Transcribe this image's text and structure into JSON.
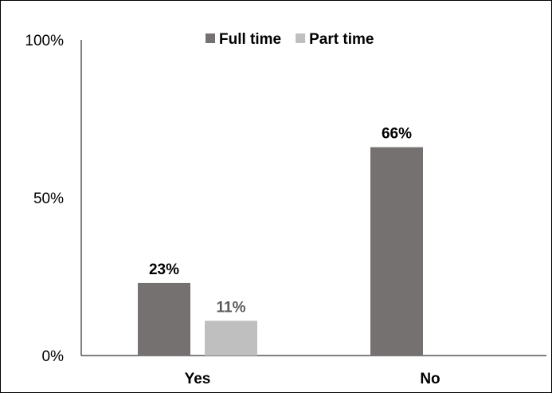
{
  "chart_data": {
    "type": "bar",
    "categories": [
      "Yes",
      "No"
    ],
    "series": [
      {
        "name": "Full time",
        "values": [
          23,
          66
        ],
        "labels": [
          "23%",
          "66%"
        ],
        "color": "#767171"
      },
      {
        "name": "Part time",
        "values": [
          11,
          null
        ],
        "labels": [
          "11%",
          ""
        ],
        "color": "#BFBFBF"
      }
    ],
    "ylim": [
      0,
      100
    ],
    "yticks": [
      {
        "value": 0,
        "label": "0%"
      },
      {
        "value": 50,
        "label": "50%"
      },
      {
        "value": 100,
        "label": "100%"
      }
    ],
    "data_label_colors": [
      "#000000",
      "#595959"
    ],
    "legend_position": "top-center",
    "grid": false,
    "title": "",
    "xlabel": "",
    "ylabel": ""
  }
}
